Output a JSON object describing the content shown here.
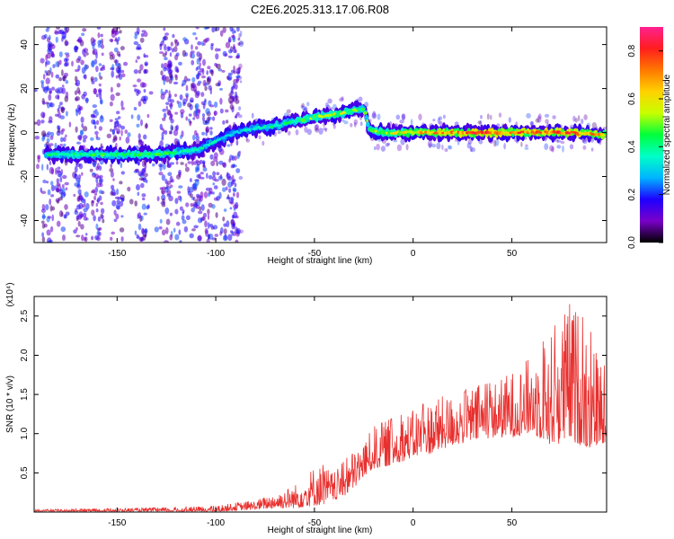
{
  "figure": {
    "title": "C2E6.2025.313.17.06.R08"
  },
  "chart_data": [
    {
      "type": "heatmap",
      "xlabel": "Height of straight line (km)",
      "ylabel": "Frequency (Hz)",
      "xlim": [
        -192,
        98
      ],
      "ylim": [
        -50,
        48
      ],
      "x_ticks": [
        -150,
        -100,
        -50,
        0,
        50
      ],
      "y_ticks": [
        40,
        20,
        0,
        -20,
        -40
      ],
      "colorbar": {
        "label": "Normalized spectral amplitude",
        "range": [
          0.0,
          0.9
        ],
        "ticks": [
          0.0,
          0.2,
          0.4,
          0.6,
          0.8
        ],
        "colormap": [
          "#000000",
          "#7a00c8",
          "#1e00ff",
          "#00b4ff",
          "#00ffc8",
          "#00ff3c",
          "#c8ff00",
          "#ffd200",
          "#ff7800",
          "#ff1e1e",
          "#ff2090"
        ]
      },
      "ridge": {
        "x": [
          -185,
          -170,
          -155,
          -140,
          -125,
          -110,
          -100,
          -90,
          -85,
          -80,
          -70,
          -60,
          -50,
          -40,
          -35,
          -30,
          -25,
          -22,
          -15,
          0,
          20,
          40,
          60,
          80,
          95
        ],
        "frequency": [
          -10,
          -10,
          -10,
          -10,
          -9.5,
          -8,
          -4,
          0,
          1,
          2,
          3,
          5,
          7,
          8,
          9,
          10,
          11,
          1,
          0,
          0,
          0,
          0,
          0,
          0,
          -1
        ],
        "amplitude": [
          0.4,
          0.45,
          0.45,
          0.45,
          0.45,
          0.4,
          0.35,
          0.3,
          0.35,
          0.35,
          0.4,
          0.45,
          0.5,
          0.55,
          0.55,
          0.5,
          0.45,
          0.5,
          0.55,
          0.65,
          0.75,
          0.8,
          0.75,
          0.8,
          0.7
        ]
      }
    },
    {
      "type": "line",
      "xlabel": "Height of straight line (km)",
      "ylabel": "SNR (10 * v/v)",
      "y_multiplier": "(x10⁴)",
      "xlim": [
        -192,
        98
      ],
      "ylim": [
        0,
        2.75
      ],
      "x_ticks": [
        -150,
        -100,
        -50,
        0,
        50
      ],
      "y_ticks": [
        0.5,
        1.0,
        1.5,
        2.0,
        2.5
      ],
      "color": "#e8302e",
      "envelope": {
        "x": [
          -192,
          -150,
          -120,
          -100,
          -90,
          -80,
          -70,
          -60,
          -50,
          -45,
          -40,
          -35,
          -30,
          -25,
          -20,
          -10,
          0,
          10,
          20,
          30,
          40,
          50,
          60,
          70,
          80,
          90,
          98
        ],
        "low": [
          0.0,
          0.0,
          0.0,
          0.0,
          0.02,
          0.03,
          0.05,
          0.05,
          0.08,
          0.1,
          0.15,
          0.2,
          0.3,
          0.45,
          0.55,
          0.6,
          0.7,
          0.75,
          0.85,
          0.9,
          0.95,
          0.95,
          1.0,
          0.85,
          0.9,
          0.8,
          0.9
        ],
        "high": [
          0.03,
          0.05,
          0.06,
          0.08,
          0.12,
          0.15,
          0.25,
          0.35,
          0.6,
          0.6,
          0.5,
          0.65,
          0.8,
          0.9,
          1.1,
          1.2,
          1.3,
          1.45,
          1.5,
          1.6,
          1.65,
          1.8,
          2.0,
          2.3,
          2.75,
          2.3,
          1.8
        ]
      }
    }
  ]
}
